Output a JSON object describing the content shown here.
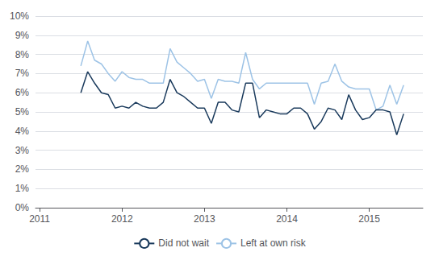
{
  "chart_data": {
    "type": "line",
    "x": [
      2011.5,
      2011.5833333333333,
      2011.6666666666667,
      2011.75,
      2011.8333333333333,
      2011.9166666666667,
      2012.0,
      2012.0833333333333,
      2012.1666666666667,
      2012.25,
      2012.3333333333333,
      2012.4166666666667,
      2012.5,
      2012.5833333333333,
      2012.6666666666667,
      2012.75,
      2012.8333333333333,
      2012.9166666666667,
      2013.0,
      2013.0833333333333,
      2013.1666666666667,
      2013.25,
      2013.3333333333333,
      2013.4166666666667,
      2013.5,
      2013.5833333333333,
      2013.6666666666667,
      2013.75,
      2013.8333333333333,
      2013.9166666666667,
      2014.0,
      2014.0833333333333,
      2014.1666666666667,
      2014.25,
      2014.3333333333333,
      2014.4166666666667,
      2014.5,
      2014.5833333333333,
      2014.6666666666667,
      2014.75,
      2014.8333333333333,
      2014.9166666666667,
      2015.0,
      2015.0833333333333,
      2015.1666666666667,
      2015.25,
      2015.3333333333333,
      2015.4166666666667
    ],
    "series": [
      {
        "name": "Did not wait",
        "color": "#1a3a5c",
        "values": [
          6.0,
          7.1,
          6.5,
          6.0,
          5.9,
          5.2,
          5.3,
          5.2,
          5.5,
          5.3,
          5.2,
          5.2,
          5.5,
          6.7,
          6.0,
          5.8,
          5.5,
          5.2,
          5.2,
          4.4,
          5.5,
          5.5,
          5.1,
          5.0,
          6.5,
          6.5,
          4.7,
          5.1,
          5.0,
          4.9,
          4.9,
          5.2,
          5.2,
          4.9,
          4.1,
          4.5,
          5.2,
          5.1,
          4.6,
          5.9,
          5.1,
          4.6,
          4.7,
          5.1,
          5.1,
          5.0,
          3.8,
          4.9
        ]
      },
      {
        "name": "Left at own risk",
        "color": "#9dc3e6",
        "values": [
          7.4,
          8.7,
          7.7,
          7.5,
          7.0,
          6.6,
          7.1,
          6.8,
          6.7,
          6.7,
          6.5,
          6.5,
          6.5,
          8.3,
          7.6,
          7.3,
          7.0,
          6.6,
          6.7,
          5.7,
          6.7,
          6.6,
          6.6,
          6.5,
          8.1,
          6.7,
          6.2,
          6.5,
          6.5,
          6.5,
          6.5,
          6.5,
          6.5,
          6.5,
          5.4,
          6.5,
          6.6,
          7.5,
          6.6,
          6.3,
          6.2,
          6.2,
          6.2,
          5.1,
          5.3,
          6.4,
          5.4,
          6.4
        ]
      }
    ],
    "xlim": [
      2010.95,
      2015.65
    ],
    "xticks": [
      2011,
      2012,
      2013,
      2014,
      2015
    ],
    "ylim": [
      0,
      10
    ],
    "yticks": [
      {
        "value": 0,
        "label": "0%"
      },
      {
        "value": 1,
        "label": "1%"
      },
      {
        "value": 2,
        "label": "2%"
      },
      {
        "value": 3,
        "label": "3%"
      },
      {
        "value": 4,
        "label": "4%"
      },
      {
        "value": 5,
        "label": "5%"
      },
      {
        "value": 6,
        "label": "6%"
      },
      {
        "value": 7,
        "label": "7%"
      },
      {
        "value": 8,
        "label": "8%"
      },
      {
        "value": 9,
        "label": "9%"
      },
      {
        "value": 10,
        "label": "10%"
      }
    ],
    "grid": true,
    "legend": "bottom"
  }
}
